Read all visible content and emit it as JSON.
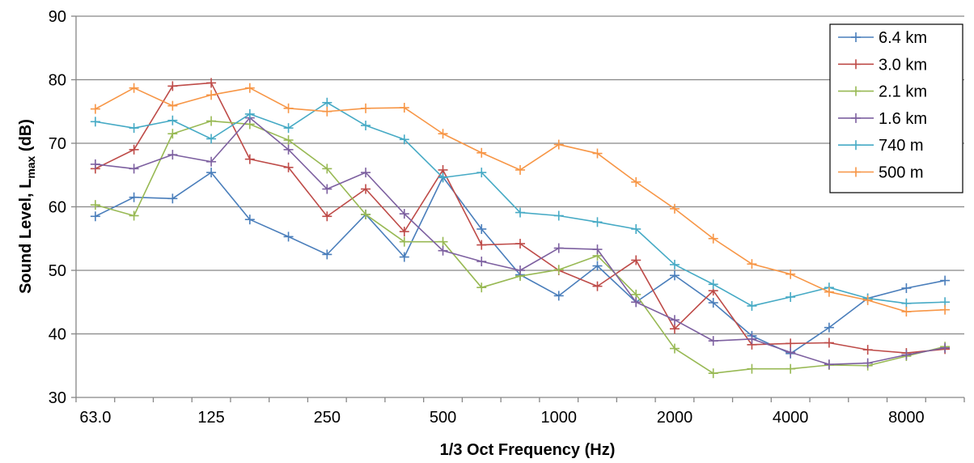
{
  "chart_data": {
    "type": "line",
    "xlabel": "1/3 Oct Frequency (Hz)",
    "ylabel_main": "Sound Level, L",
    "ylabel_sub": "max",
    "ylabel_tail": " (dB)",
    "ylim": [
      30,
      90
    ],
    "yticks": [
      30,
      40,
      50,
      60,
      70,
      80,
      90
    ],
    "x": [
      63,
      80,
      100,
      125,
      160,
      200,
      250,
      315,
      400,
      500,
      630,
      800,
      1000,
      1250,
      1600,
      2000,
      2500,
      3150,
      4000,
      5000,
      6300,
      8000,
      10000
    ],
    "xtick_labels": [
      "63.0",
      "125",
      "250",
      "500",
      "1000",
      "2000",
      "4000",
      "8000"
    ],
    "xtick_index": [
      0,
      3,
      6,
      9,
      12,
      15,
      18,
      21
    ],
    "grid": "horizontal",
    "legend_position": "top-right",
    "series": [
      {
        "name": "6.4 km",
        "color": "#4A7EBB",
        "values": [
          58.5,
          61.5,
          61.3,
          65.4,
          58.0,
          55.3,
          52.5,
          58.8,
          52.1,
          64.7,
          56.5,
          49.3,
          46.0,
          50.7,
          45.0,
          49.2,
          44.9,
          39.7,
          36.9,
          41.0,
          45.6,
          47.2,
          48.4
        ]
      },
      {
        "name": "3.0 km",
        "color": "#BE4B48",
        "values": [
          66.0,
          69.0,
          79.0,
          79.5,
          67.5,
          66.2,
          58.5,
          62.8,
          56.1,
          65.8,
          54.0,
          54.2,
          50.0,
          47.5,
          51.6,
          40.8,
          46.8,
          38.3,
          38.5,
          38.6,
          37.5,
          37.0,
          37.6
        ]
      },
      {
        "name": "2.1 km",
        "color": "#98B954",
        "values": [
          60.3,
          58.6,
          71.5,
          73.5,
          73.0,
          70.5,
          66.0,
          58.8,
          54.5,
          54.5,
          47.3,
          49.1,
          50.1,
          52.3,
          46.2,
          37.7,
          33.8,
          34.5,
          34.5,
          35.1,
          35.0,
          36.5,
          38.0
        ]
      },
      {
        "name": "1.6 km",
        "color": "#7D60A0",
        "values": [
          66.7,
          66.0,
          68.2,
          67.1,
          74.0,
          69.0,
          62.8,
          65.4,
          58.9,
          53.1,
          51.4,
          50.0,
          53.5,
          53.3,
          45.0,
          42.2,
          38.9,
          39.2,
          37.1,
          35.2,
          35.4,
          36.7,
          37.8
        ]
      },
      {
        "name": "740 m",
        "color": "#46AAC5",
        "values": [
          73.4,
          72.4,
          73.6,
          70.7,
          74.6,
          72.4,
          76.4,
          72.8,
          70.6,
          64.6,
          65.4,
          59.1,
          58.6,
          57.6,
          56.5,
          50.9,
          47.8,
          44.4,
          45.8,
          47.3,
          45.6,
          44.8,
          45.0
        ]
      },
      {
        "name": "500 m",
        "color": "#F79646",
        "values": [
          75.4,
          78.7,
          75.9,
          77.6,
          78.7,
          75.5,
          75.0,
          75.5,
          75.6,
          71.5,
          68.5,
          65.8,
          69.8,
          68.4,
          63.9,
          59.7,
          55.0,
          51.0,
          49.4,
          46.6,
          45.3,
          43.5,
          43.8
        ]
      }
    ]
  }
}
